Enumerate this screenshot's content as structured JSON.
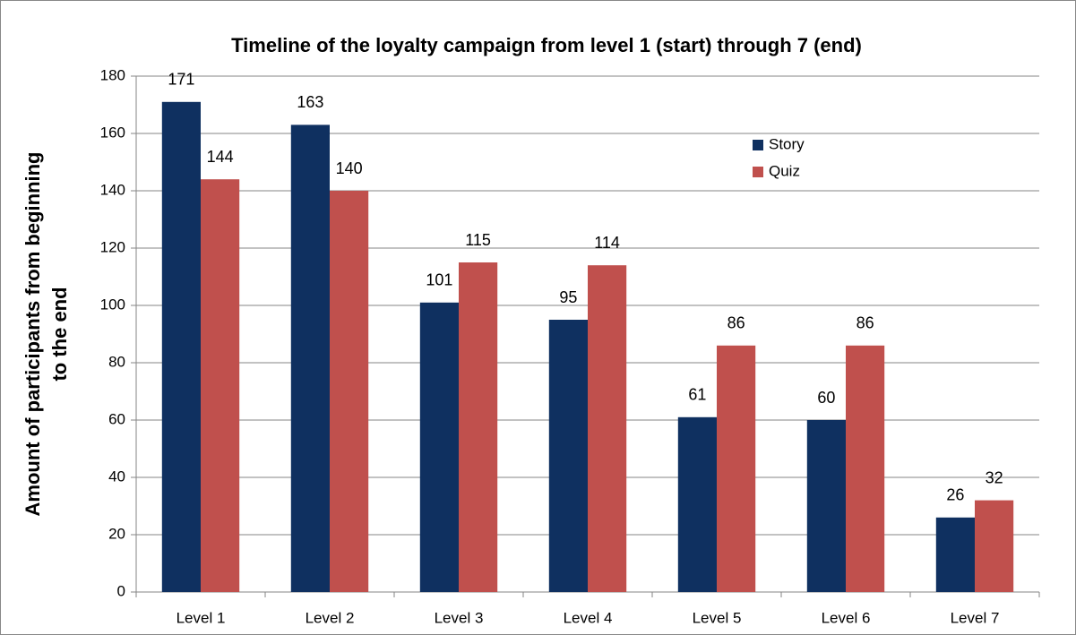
{
  "chart_data": {
    "type": "bar",
    "title": "Timeline of the loyalty campaign from level 1 (start) through 7 (end)",
    "ylabel": [
      "Amount of participants from beginning",
      "to the end"
    ],
    "categories": [
      "Level 1",
      "Level 2",
      "Level 3",
      "Level 4",
      "Level 5",
      "Level 6",
      "Level 7"
    ],
    "series": [
      {
        "name": "Story",
        "color": "#0f3060",
        "values": [
          171,
          163,
          101,
          95,
          61,
          60,
          26
        ]
      },
      {
        "name": "Quiz",
        "color": "#c0504d",
        "values": [
          144,
          140,
          115,
          114,
          86,
          86,
          32
        ]
      }
    ],
    "ylim": [
      0,
      180
    ],
    "yticks": [
      0,
      20,
      40,
      60,
      80,
      100,
      120,
      140,
      160,
      180
    ],
    "grid": true,
    "legend": "upper right"
  }
}
